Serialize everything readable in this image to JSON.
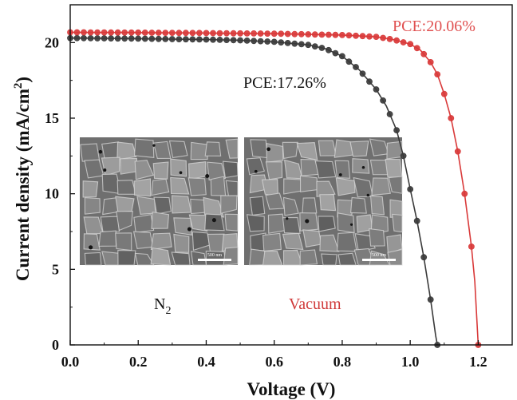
{
  "chart_data": {
    "type": "scatter",
    "xlabel": "Voltage (V)",
    "ylabel": "Current density (mA/cm²)",
    "ylabel_parts": [
      "Current density (mA/cm",
      "2",
      ")"
    ],
    "xlim": [
      0,
      1.3
    ],
    "ylim": [
      0,
      22.5
    ],
    "x_ticks": [
      "0.0",
      "0.2",
      "0.4",
      "0.6",
      "0.8",
      "1.0",
      "1.2"
    ],
    "y_ticks": [
      "0",
      "5",
      "10",
      "15",
      "20"
    ],
    "grid": false,
    "series": [
      {
        "color": "#3a3a3a",
        "voc": 1.08,
        "points": [
          [
            0.0,
            20.3
          ],
          [
            0.1,
            20.28
          ],
          [
            0.2,
            20.26
          ],
          [
            0.3,
            20.23
          ],
          [
            0.4,
            20.2
          ],
          [
            0.5,
            20.15
          ],
          [
            0.6,
            20.05
          ],
          [
            0.7,
            19.85
          ],
          [
            0.75,
            19.6
          ],
          [
            0.8,
            19.1
          ],
          [
            0.85,
            18.2
          ],
          [
            0.9,
            16.9
          ],
          [
            0.93,
            15.8
          ],
          [
            0.96,
            14.2
          ],
          [
            0.98,
            12.5
          ],
          [
            1.0,
            10.3
          ],
          [
            1.02,
            8.2
          ],
          [
            1.04,
            5.8
          ],
          [
            1.06,
            3.0
          ],
          [
            1.075,
            0.6
          ],
          [
            1.08,
            0.0
          ]
        ]
      },
      {
        "color": "#d93a3a",
        "voc": 1.2,
        "points": [
          [
            0.0,
            20.68
          ],
          [
            0.2,
            20.66
          ],
          [
            0.4,
            20.63
          ],
          [
            0.6,
            20.59
          ],
          [
            0.8,
            20.5
          ],
          [
            0.9,
            20.38
          ],
          [
            0.95,
            20.2
          ],
          [
            1.0,
            19.9
          ],
          [
            1.03,
            19.5
          ],
          [
            1.06,
            18.7
          ],
          [
            1.08,
            17.9
          ],
          [
            1.1,
            16.6
          ],
          [
            1.12,
            15.0
          ],
          [
            1.14,
            12.8
          ],
          [
            1.16,
            10.0
          ],
          [
            1.18,
            6.5
          ],
          [
            1.19,
            4.2
          ],
          [
            1.2,
            0.0
          ]
        ]
      }
    ],
    "annotations": [
      {
        "text": "PCE:20.06%",
        "color": "#e05050"
      },
      {
        "text": "PCE:17.26%",
        "color": "#111111"
      }
    ],
    "inset_labels": [
      {
        "text": "N",
        "sub": "2",
        "color": "#111111"
      },
      {
        "text": "Vacuum",
        "color": "#d03a3a"
      }
    ],
    "scale_bar_labels": [
      "500 nm",
      "500 nm"
    ]
  }
}
